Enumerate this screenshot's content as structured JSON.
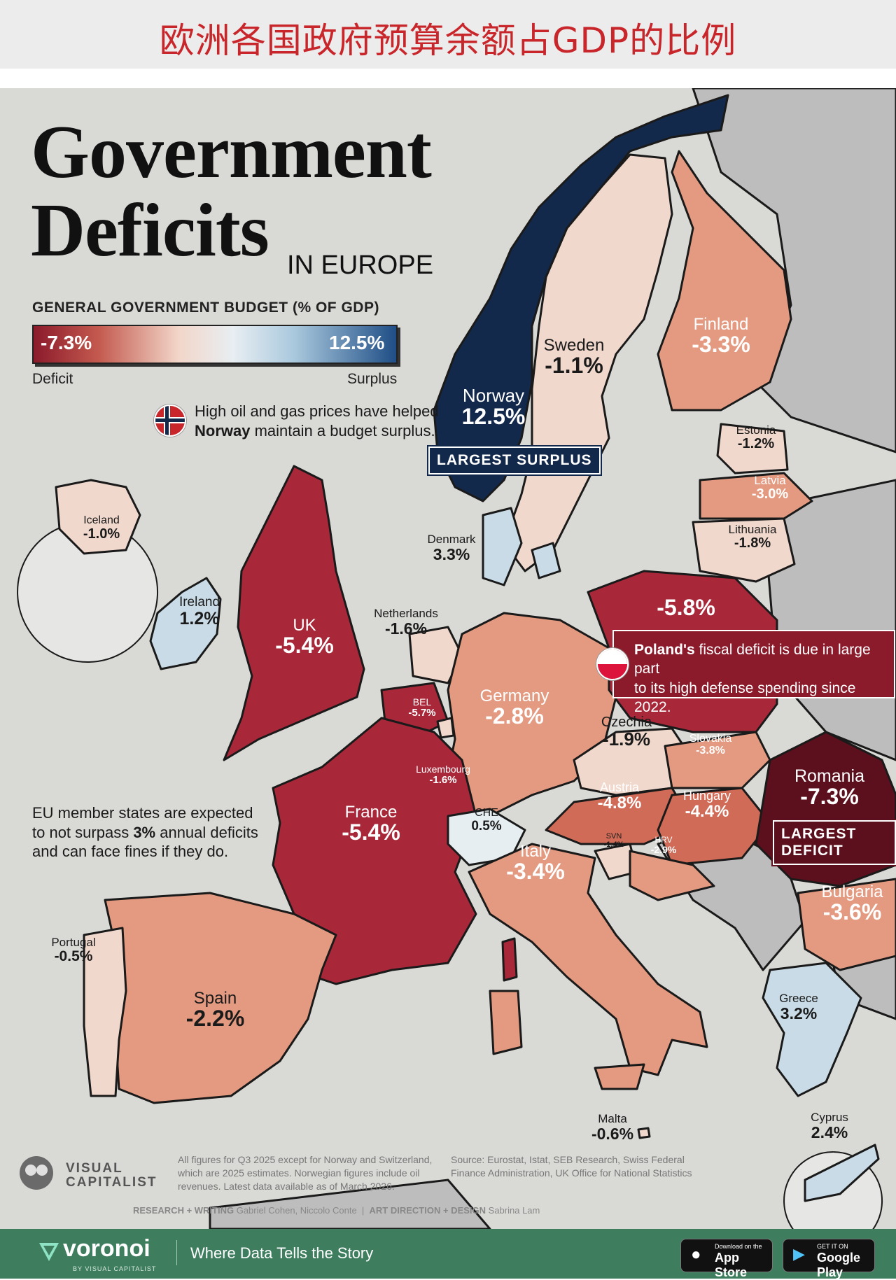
{
  "header": {
    "chinese_title": "欧洲各国政府预算余额占GDP的比例"
  },
  "title": {
    "line1": "Government",
    "line2": "Deficits",
    "line3": "IN EUROPE"
  },
  "legend": {
    "title": "GENERAL GOVERNMENT BUDGET (% OF GDP)",
    "min_label": "-7.3%",
    "max_label": "12.5%",
    "min_value": -7.3,
    "max_value": 12.5,
    "left_label": "Deficit",
    "right_label": "Surplus"
  },
  "colors": {
    "deep_deficit": "#5c0f1c",
    "deficit": "#a8283a",
    "moderate_deficit": "#cf6b56",
    "light_deficit": "#e39a80",
    "slight_deficit": "#f1d8cc",
    "slight_surplus": "#c8dbe6",
    "surplus": "#1f4e86",
    "strong_surplus": "#13294b",
    "nonmember": "#bdbdbd"
  },
  "countries": [
    {
      "name": "Norway",
      "value": 12.5,
      "label": "12.5%"
    },
    {
      "name": "Sweden",
      "value": -1.1,
      "label": "-1.1%"
    },
    {
      "name": "Finland",
      "value": -3.3,
      "label": "-3.3%"
    },
    {
      "name": "Estonia",
      "value": -1.2,
      "label": "-1.2%"
    },
    {
      "name": "Latvia",
      "value": -3.0,
      "label": "-3.0%"
    },
    {
      "name": "Lithuania",
      "value": -1.8,
      "label": "-1.8%"
    },
    {
      "name": "Denmark",
      "value": 3.3,
      "label": "3.3%"
    },
    {
      "name": "Iceland",
      "value": -1.0,
      "label": "-1.0%"
    },
    {
      "name": "Ireland",
      "value": 1.2,
      "label": "1.2%"
    },
    {
      "name": "UK",
      "value": -5.4,
      "label": "-5.4%"
    },
    {
      "name": "Netherlands",
      "value": -1.6,
      "label": "-1.6%"
    },
    {
      "name": "Poland",
      "value": -5.8,
      "label": "-5.8%"
    },
    {
      "name": "Germany",
      "value": -2.8,
      "label": "-2.8%"
    },
    {
      "name": "BEL",
      "value": -5.7,
      "label": "-5.7%"
    },
    {
      "name": "Luxembourg",
      "value": -1.6,
      "label": "-1.6%"
    },
    {
      "name": "Czechia",
      "value": -1.9,
      "label": "-1.9%"
    },
    {
      "name": "Slovakia",
      "value": -3.8,
      "label": "-3.8%"
    },
    {
      "name": "Austria",
      "value": -4.8,
      "label": "-4.8%"
    },
    {
      "name": "Hungary",
      "value": -4.4,
      "label": "-4.4%"
    },
    {
      "name": "Romania",
      "value": -7.3,
      "label": "-7.3%"
    },
    {
      "name": "France",
      "value": -5.4,
      "label": "-5.4%"
    },
    {
      "name": "CHE",
      "value": 0.5,
      "label": "0.5%"
    },
    {
      "name": "Italy",
      "value": -3.4,
      "label": "-3.4%"
    },
    {
      "name": "SVN",
      "value": -1.4,
      "label": "-1.4%"
    },
    {
      "name": "HRV",
      "value": -2.9,
      "label": "-2.9%"
    },
    {
      "name": "Bulgaria",
      "value": -3.6,
      "label": "-3.6%"
    },
    {
      "name": "Portugal",
      "value": -0.5,
      "label": "-0.5%"
    },
    {
      "name": "Spain",
      "value": -2.2,
      "label": "-2.2%"
    },
    {
      "name": "Greece",
      "value": 3.2,
      "label": "3.2%"
    },
    {
      "name": "Malta",
      "value": -0.6,
      "label": "-0.6%"
    },
    {
      "name": "Cyprus",
      "value": 2.4,
      "label": "2.4%"
    }
  ],
  "callouts": {
    "norway_note_bold": "Norway",
    "norway_note_line1": "High oil and gas prices have helped",
    "norway_note_line2_rest": " maintain a budget surplus.",
    "largest_surplus": "LARGEST SURPLUS",
    "largest_deficit": "LARGEST DEFICIT",
    "poland_bold": "Poland's",
    "poland_rest": " fiscal deficit is due in large part",
    "poland_line2": "to its high defense spending since 2022.",
    "eu_note_line1": "EU member states are expected",
    "eu_note_line2_pre": "to not surpass ",
    "eu_note_line2_bold": "3%",
    "eu_note_line2_post": " annual deficits",
    "eu_note_line3": "and can face fines if they do."
  },
  "footer": {
    "note1": "All figures for Q3 2025 except for Norway and Switzerland,",
    "note2": "which are 2025 estimates. Norwegian figures include oil",
    "note3": "revenues. Latest data available as of March 2026.",
    "source1": "Source: Eurostat, Istat, SEB Research, Swiss Federal",
    "source2": "Finance Administration, UK Office for National Statistics",
    "research_label": "RESEARCH + WRITING",
    "research_names": "Gabriel Cohen, Niccolo Conte",
    "design_label": "ART DIRECTION + DESIGN",
    "design_name": "Sabrina Lam",
    "brand_line1": "VISUAL",
    "brand_line2": "CAPITALIST"
  },
  "bottom_bar": {
    "brand": "voronoi",
    "brand_sub": "BY VISUAL CAPITALIST",
    "tagline": "Where Data Tells the Story",
    "appstore_small": "Download on the",
    "appstore_big": "App Store",
    "googleplay_small": "GET IT ON",
    "googleplay_big": "Google Play"
  }
}
